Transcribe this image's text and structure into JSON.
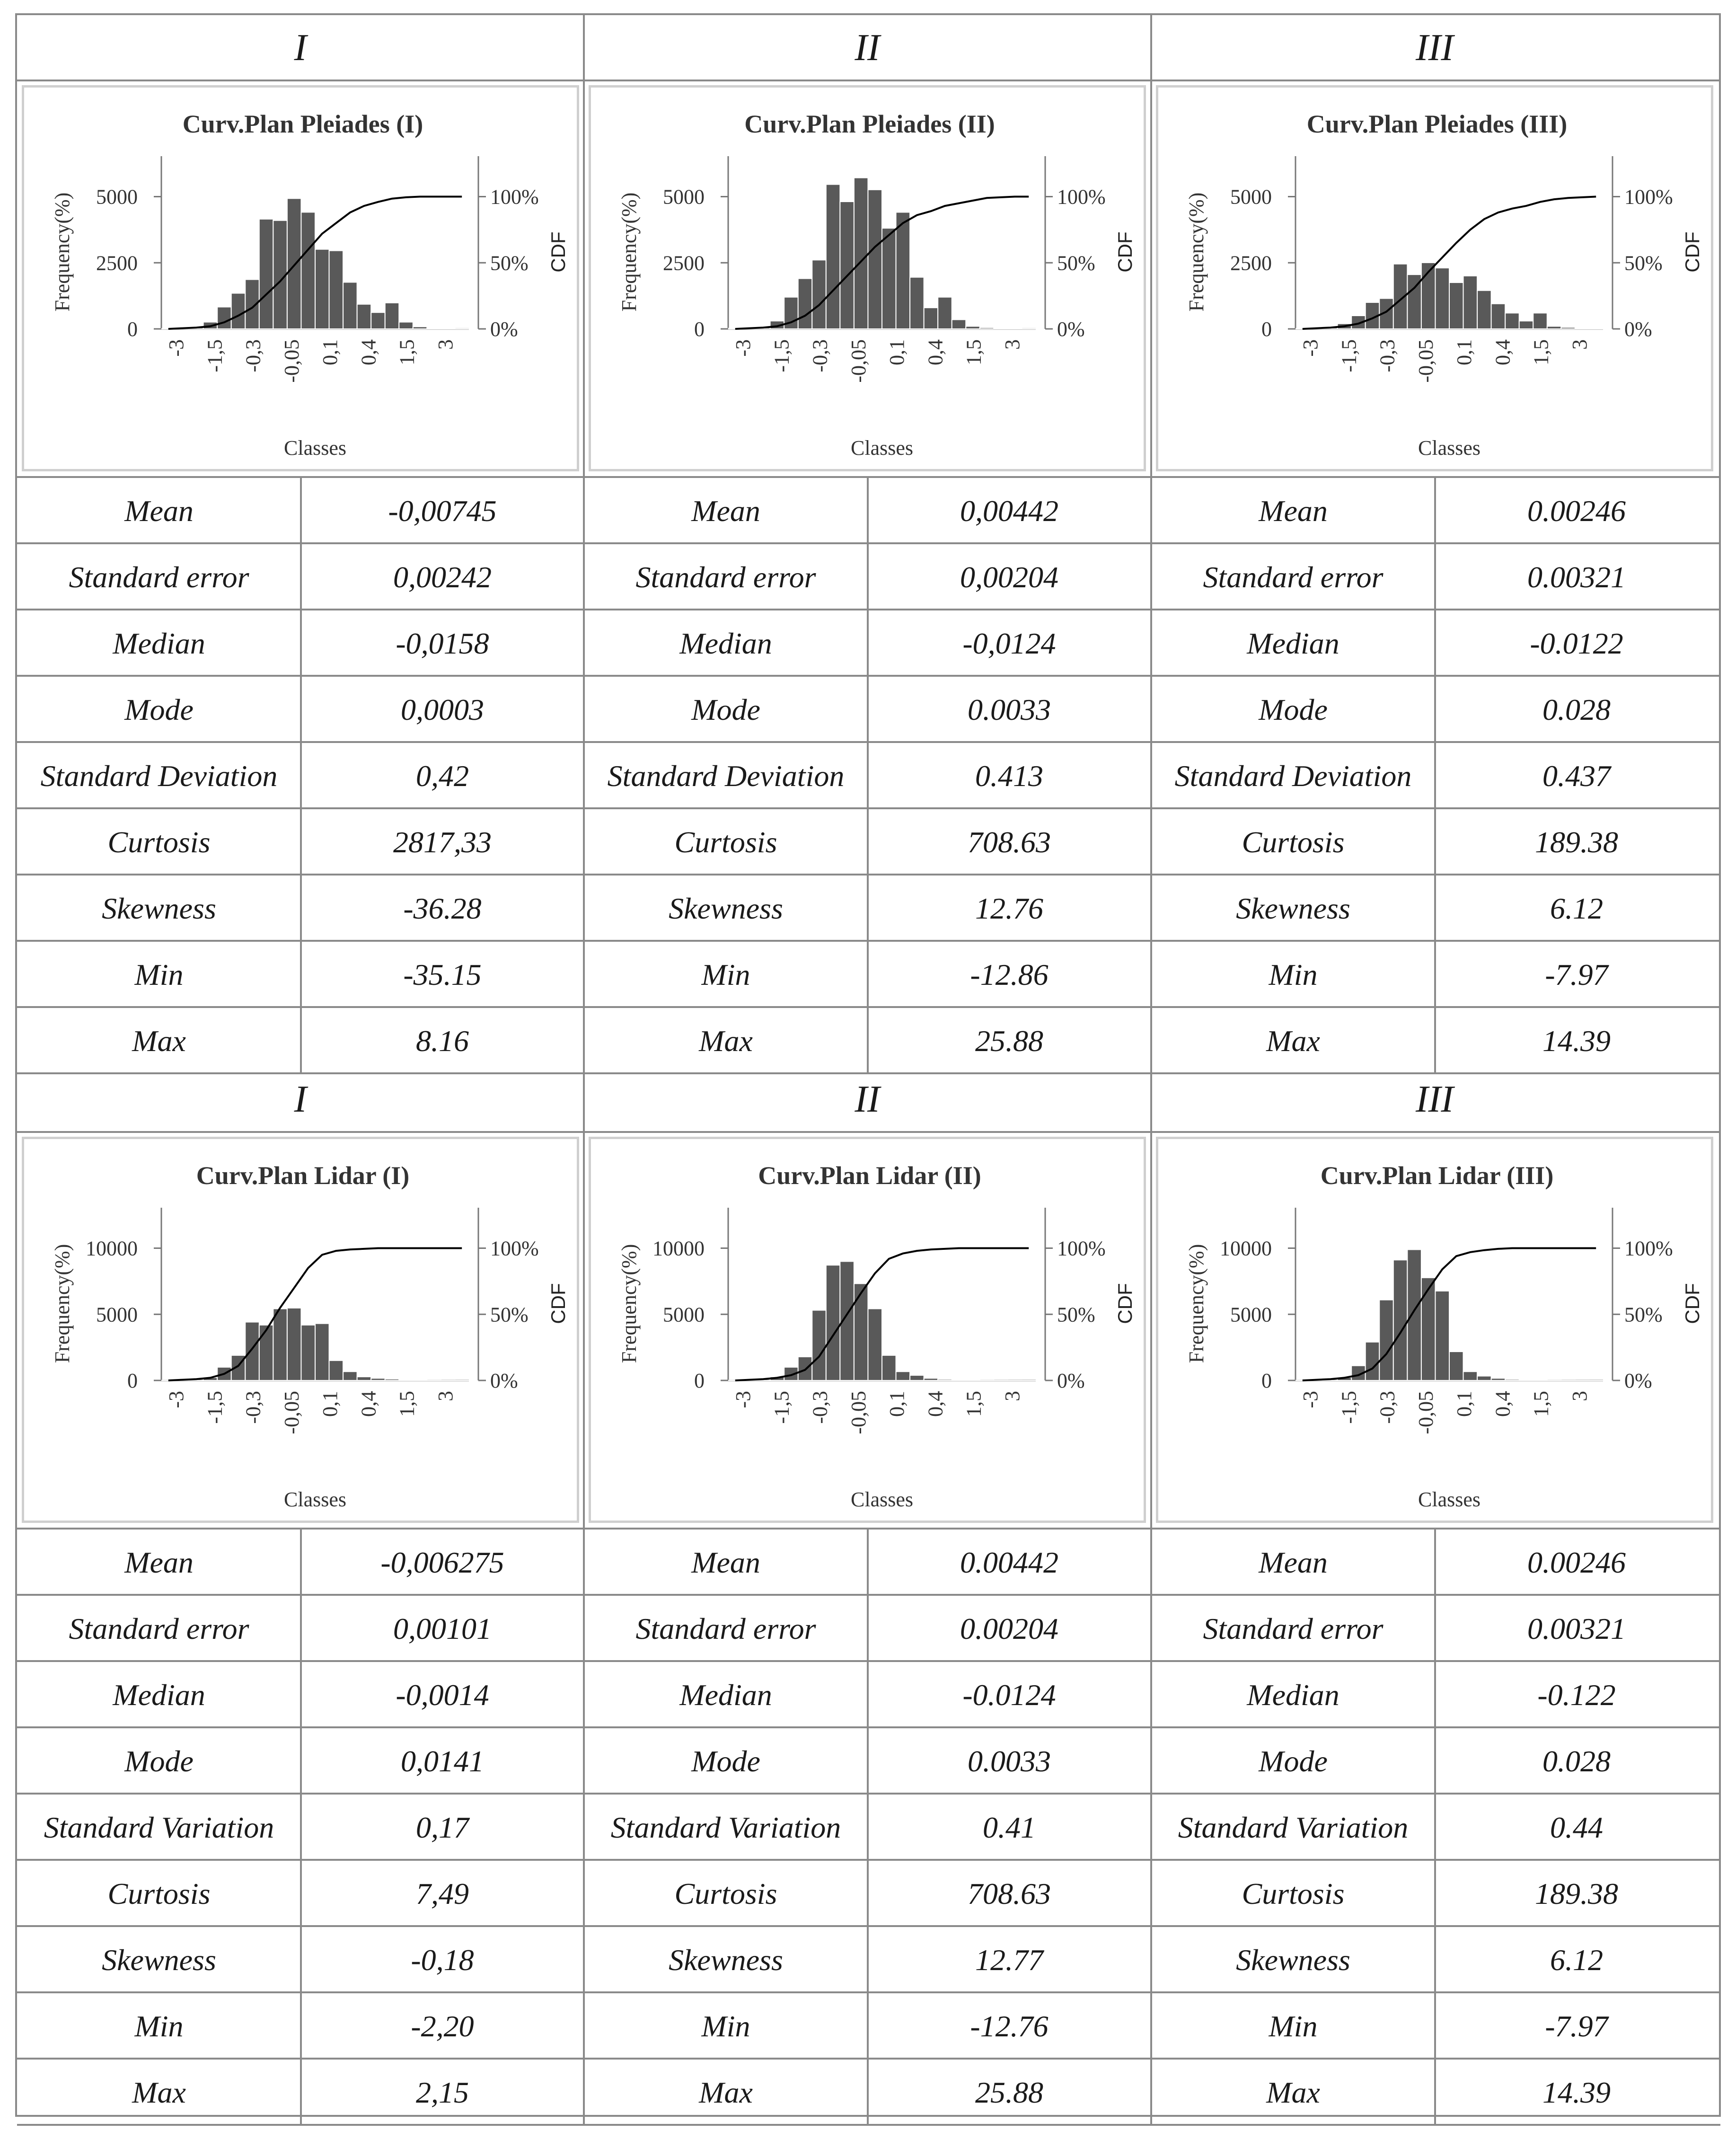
{
  "col_headers": [
    "I",
    "II",
    "III"
  ],
  "col_headers_lower": [
    "I",
    "II",
    "III"
  ],
  "classes": [
    "-3",
    "-1,5",
    "-0,3",
    "-0,05",
    "0,1",
    "0,4",
    "1,5",
    "3"
  ],
  "chart_data": [
    {
      "type": "bar",
      "title": "Curv.Plan Pleiades (I)",
      "xlabel": "Classes",
      "ylabel": "Frequency(%)",
      "y2label": "CDF",
      "y_ticks": [
        "0",
        "2500",
        "5000"
      ],
      "ylim": [
        0,
        5600
      ],
      "y2_ticks": [
        "0%",
        "50%",
        "100%"
      ],
      "x_tick_labels": [
        "-3",
        "-1,5",
        "-0,3",
        "-0,05",
        "0,1",
        "0,4",
        "1,5",
        "3"
      ],
      "values": [
        10,
        30,
        80,
        250,
        800,
        1300,
        1800,
        4000,
        3950,
        4750,
        4250,
        2900,
        2850,
        1700,
        900,
        600,
        950,
        250,
        80,
        30,
        10,
        5
      ],
      "cdf": [
        0,
        0.5,
        1,
        2,
        5,
        10,
        16,
        26,
        36,
        48,
        60,
        72,
        80,
        88,
        93,
        96,
        98.5,
        99.5,
        100,
        100,
        100,
        100
      ]
    },
    {
      "type": "bar",
      "title": "Curv.Plan Pleiades (II)",
      "xlabel": "Classes",
      "ylabel": "Frequency(%)",
      "y2label": "CDF",
      "y_ticks": [
        "0",
        "2500",
        "5000"
      ],
      "ylim": [
        0,
        5800
      ],
      "y2_ticks": [
        "0%",
        "50%",
        "100%"
      ],
      "x_tick_labels": [
        "-3",
        "-1,5",
        "-0,3",
        "-0,05",
        "0,1",
        "0,4",
        "1,5",
        "3"
      ],
      "values": [
        20,
        40,
        90,
        300,
        1200,
        1900,
        2600,
        5450,
        4800,
        5700,
        5250,
        3800,
        4400,
        1950,
        800,
        1200,
        350,
        100,
        50,
        30,
        15,
        5
      ],
      "cdf": [
        0,
        0.5,
        1,
        2,
        5,
        10,
        18,
        29,
        40,
        51,
        62,
        71,
        80,
        86,
        89,
        93,
        95,
        97,
        99,
        99.5,
        100,
        100
      ]
    },
    {
      "type": "bar",
      "title": "Curv.Plan Pleiades (III)",
      "xlabel": "Classes",
      "ylabel": "Frequency(%)",
      "y2label": "CDF",
      "y_ticks": [
        "0",
        "2500",
        "5000"
      ],
      "ylim": [
        0,
        5800
      ],
      "y2_ticks": [
        "0%",
        "50%",
        "100%"
      ],
      "x_tick_labels": [
        "-3",
        "-1,5",
        "-0,3",
        "-0,05",
        "0,1",
        "0,4",
        "1,5",
        "3"
      ],
      "values": [
        10,
        30,
        80,
        200,
        500,
        1000,
        1150,
        2450,
        2050,
        2500,
        2300,
        1750,
        2000,
        1450,
        950,
        600,
        300,
        600,
        100,
        60,
        25,
        10
      ],
      "cdf": [
        0,
        0.5,
        1,
        2,
        4,
        8,
        13,
        22,
        31,
        43,
        54,
        65,
        75,
        83,
        88,
        91,
        93,
        96,
        98,
        99,
        99.5,
        100
      ]
    },
    {
      "type": "bar",
      "title": "Curv.Plan  Lidar (I)",
      "xlabel": "Classes",
      "ylabel": "Frequency(%)",
      "y2label": "CDF",
      "y_ticks": [
        "0",
        "5000",
        "10000"
      ],
      "ylim": [
        0,
        10400
      ],
      "y2_ticks": [
        "0%",
        "50%",
        "100%"
      ],
      "x_tick_labels": [
        "-3",
        "-1,5",
        "-0,3",
        "-0,05",
        "0,1",
        "0,4",
        "1,5",
        "3"
      ],
      "values": [
        10,
        30,
        80,
        200,
        900,
        1700,
        3950,
        3750,
        4850,
        4900,
        3750,
        3850,
        1350,
        600,
        250,
        150,
        100,
        40,
        20,
        10,
        5,
        2
      ],
      "cdf": [
        0,
        0.5,
        1,
        2,
        5,
        11,
        24,
        38,
        55,
        70,
        85,
        95,
        98,
        99,
        99.5,
        100,
        100,
        100,
        100,
        100,
        100,
        100
      ]
    },
    {
      "type": "bar",
      "title": "Curv.Plan Lidar (II)",
      "xlabel": "Classes",
      "ylabel": "Frequency(%)",
      "y2label": "CDF",
      "y_ticks": [
        "0",
        "5000",
        "10000"
      ],
      "ylim": [
        0,
        10400
      ],
      "y2_ticks": [
        "0%",
        "50%",
        "100%"
      ],
      "x_tick_labels": [
        "-3",
        "-1,5",
        "-0,3",
        "-0,05",
        "0,1",
        "0,4",
        "1,5",
        "3"
      ],
      "values": [
        10,
        30,
        80,
        250,
        900,
        1600,
        4750,
        7800,
        8050,
        6550,
        4850,
        1700,
        600,
        350,
        150,
        80,
        40,
        20,
        10,
        5,
        2,
        1
      ],
      "cdf": [
        0,
        0.5,
        1,
        2,
        4,
        8,
        18,
        34,
        50,
        66,
        81,
        92,
        96,
        98,
        99,
        99.5,
        100,
        100,
        100,
        100,
        100,
        100
      ]
    },
    {
      "type": "bar",
      "title": "Curv.Plan Lidar (III)",
      "xlabel": "Classes",
      "ylabel": "Frequency(%)",
      "y2label": "CDF",
      "y_ticks": [
        "0",
        "5000",
        "10000"
      ],
      "ylim": [
        0,
        10400
      ],
      "y2_ticks": [
        "0%",
        "50%",
        "100%"
      ],
      "x_tick_labels": [
        "-3",
        "-1,5",
        "-0,3",
        "-0,05",
        "0,1",
        "0,4",
        "1,5",
        "3"
      ],
      "values": [
        10,
        30,
        80,
        200,
        1000,
        2600,
        5450,
        8150,
        8850,
        6950,
        6050,
        1950,
        600,
        300,
        150,
        80,
        40,
        20,
        10,
        5,
        2,
        1
      ],
      "cdf": [
        0,
        0.5,
        1,
        2,
        4,
        9,
        20,
        36,
        53,
        69,
        84,
        94,
        97,
        98.5,
        99.5,
        100,
        100,
        100,
        100,
        100,
        100,
        100
      ]
    }
  ],
  "tables": [
    {
      "rows": [
        [
          "Mean",
          "-0,00745"
        ],
        [
          "Standard error",
          "0,00242"
        ],
        [
          "Median",
          "-0,0158"
        ],
        [
          "Mode",
          "0,0003"
        ],
        [
          "Standard Deviation",
          "0,42"
        ],
        [
          "Curtosis",
          "2817,33"
        ],
        [
          "Skewness",
          "-36.28"
        ],
        [
          "Min",
          "-35.15"
        ],
        [
          "Max",
          "8.16"
        ]
      ]
    },
    {
      "rows": [
        [
          "Mean",
          "0,00442"
        ],
        [
          "Standard error",
          "0,00204"
        ],
        [
          "Median",
          "-0,0124"
        ],
        [
          "Mode",
          "0.0033"
        ],
        [
          "Standard Deviation",
          "0.413"
        ],
        [
          "Curtosis",
          "708.63"
        ],
        [
          "Skewness",
          "12.76"
        ],
        [
          "Min",
          "-12.86"
        ],
        [
          "Max",
          "25.88"
        ]
      ]
    },
    {
      "rows": [
        [
          "Mean",
          "0.00246"
        ],
        [
          "Standard error",
          "0.00321"
        ],
        [
          "Median",
          "-0.0122"
        ],
        [
          "Mode",
          "0.028"
        ],
        [
          "Standard Deviation",
          "0.437"
        ],
        [
          "Curtosis",
          "189.38"
        ],
        [
          "Skewness",
          "6.12"
        ],
        [
          "Min",
          "-7.97"
        ],
        [
          "Max",
          "14.39"
        ]
      ]
    },
    {
      "rows": [
        [
          "Mean",
          "-0,006275"
        ],
        [
          "Standard error",
          "0,00101"
        ],
        [
          "Median",
          "-0,0014"
        ],
        [
          "Mode",
          "0,0141"
        ],
        [
          "Standard Variation",
          "0,17"
        ],
        [
          "Curtosis",
          "7,49"
        ],
        [
          "Skewness",
          "-0,18"
        ],
        [
          "Min",
          "-2,20"
        ],
        [
          "Max",
          "2,15"
        ]
      ]
    },
    {
      "rows": [
        [
          "Mean",
          "0.00442"
        ],
        [
          "Standard error",
          "0.00204"
        ],
        [
          "Median",
          "-0.0124"
        ],
        [
          "Mode",
          "0.0033"
        ],
        [
          "Standard Variation",
          "0.41"
        ],
        [
          "Curtosis",
          "708.63"
        ],
        [
          "Skewness",
          "12.77"
        ],
        [
          "Min",
          "-12.76"
        ],
        [
          "Max",
          "25.88"
        ]
      ]
    },
    {
      "rows": [
        [
          "Mean",
          "0.00246"
        ],
        [
          "Standard error",
          "0.00321"
        ],
        [
          "Median",
          "-0.122"
        ],
        [
          "Mode",
          "0.028"
        ],
        [
          "Standard Variation",
          "0.44"
        ],
        [
          "Curtosis",
          "189.38"
        ],
        [
          "Skewness",
          "6.12"
        ],
        [
          "Min",
          "-7.97"
        ],
        [
          "Max",
          "14.39"
        ]
      ]
    }
  ],
  "colors": {
    "bar": "#595959",
    "bar_edge": "#ffffff",
    "cdf_line": "#000000",
    "border": "#8a8a8a",
    "chart_frame": "#cfcfcf"
  }
}
